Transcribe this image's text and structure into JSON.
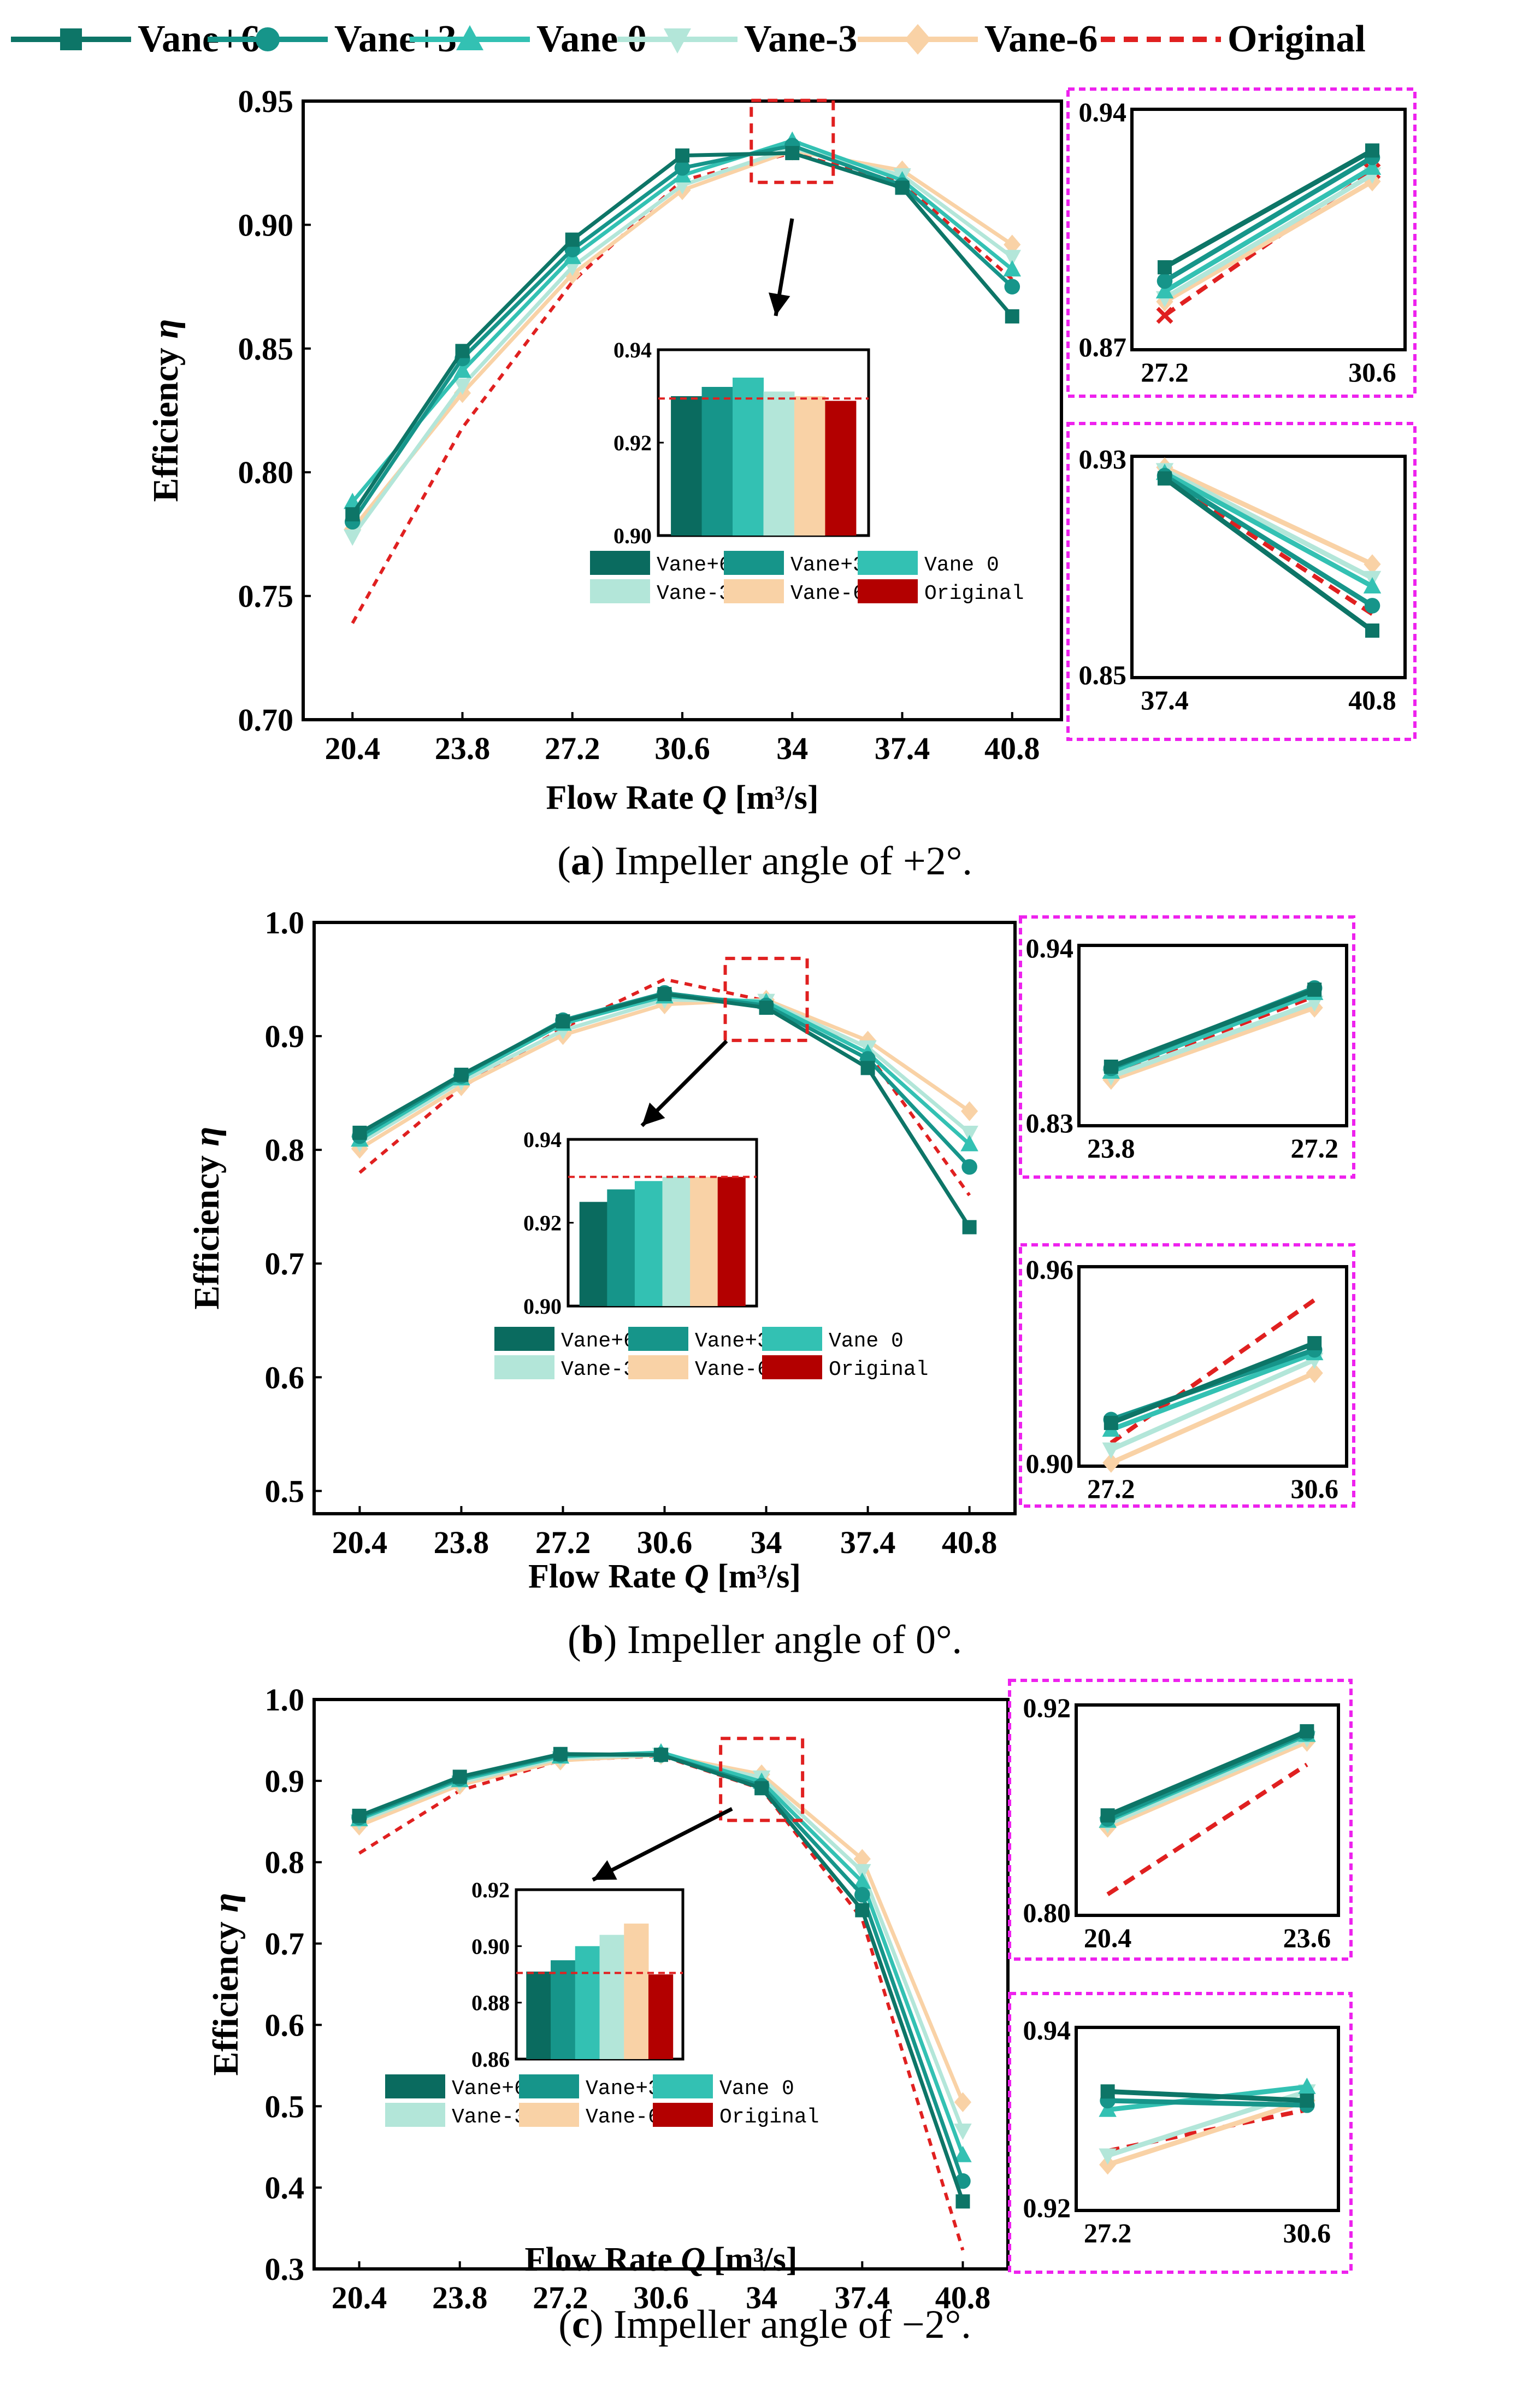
{
  "legend": {
    "entries": [
      {
        "name": "Vane+6",
        "color": "#0d7567",
        "marker": "square",
        "dash": false
      },
      {
        "name": "Vane+3",
        "color": "#16958a",
        "marker": "circle",
        "dash": false
      },
      {
        "name": "Vane 0",
        "color": "#33c1b3",
        "marker": "triangle-up",
        "dash": false
      },
      {
        "name": "Vane-3",
        "color": "#b3e6d9",
        "marker": "triangle-down",
        "dash": false
      },
      {
        "name": "Vane-6",
        "color": "#f9d2a6",
        "marker": "diamond",
        "dash": false
      },
      {
        "name": "Original",
        "color": "#e02020",
        "marker": "none",
        "dash": true
      }
    ]
  },
  "panels": [
    {
      "caption_letter": "a",
      "caption_text": ") Impeller angle of +2°.",
      "caption_open": "(",
      "main": {
        "type": "line",
        "xlabel_prefix": "Flow Rate ",
        "xlabel_var": "Q",
        "xlabel_unit": " [m³/s]",
        "ylabel_prefix": "Efficiency ",
        "ylabel_var": "η",
        "x_ticks": [
          "20.4",
          "23.8",
          "27.2",
          "30.6",
          "34",
          "37.4",
          "40.8"
        ],
        "y_ticks": [
          "0.70",
          "0.75",
          "0.80",
          "0.85",
          "0.90",
          "0.95"
        ],
        "ylim": [
          0.7,
          0.95
        ],
        "series": [
          {
            "name": "Vane+6",
            "values": [
              0.783,
              0.849,
              0.894,
              0.928,
              0.929,
              0.915,
              0.863
            ]
          },
          {
            "name": "Vane+3",
            "values": [
              0.78,
              0.846,
              0.89,
              0.923,
              0.932,
              0.916,
              0.875
            ]
          },
          {
            "name": "Vane 0",
            "values": [
              0.788,
              0.841,
              0.887,
              0.92,
              0.934,
              0.918,
              0.882
            ]
          },
          {
            "name": "Vane-3",
            "values": [
              0.774,
              0.835,
              0.883,
              0.916,
              0.931,
              0.92,
              0.887
            ]
          },
          {
            "name": "Vane-6",
            "values": [
              0.777,
              0.832,
              0.88,
              0.914,
              0.93,
              0.922,
              0.892
            ]
          },
          {
            "name": "Original",
            "values": [
              0.739,
              0.818,
              0.877,
              0.918,
              0.929,
              0.917,
              0.878
            ]
          }
        ]
      },
      "bar_inset": {
        "type": "bar",
        "y_ticks": [
          "0.90",
          "0.92",
          "0.94"
        ],
        "ylim": [
          0.9,
          0.94
        ],
        "values": [
          0.93,
          0.932,
          0.934,
          0.931,
          0.93,
          0.929
        ],
        "reference": 0.9295
      },
      "zooms": [
        {
          "x_ticks": [
            "27.2",
            "30.6"
          ],
          "y_ticks": [
            "0.87",
            "0.94"
          ],
          "ylim": [
            0.87,
            0.94
          ],
          "series": [
            {
              "name": "Vane+6",
              "values": [
                0.894,
                0.928
              ]
            },
            {
              "name": "Vane+3",
              "values": [
                0.89,
                0.926
              ]
            },
            {
              "name": "Vane 0",
              "values": [
                0.887,
                0.923
              ]
            },
            {
              "name": "Vane-3",
              "values": [
                0.885,
                0.921
              ]
            },
            {
              "name": "Vane-6",
              "values": [
                0.884,
                0.919
              ]
            },
            {
              "name": "Original",
              "values": [
                0.88,
                0.922
              ]
            }
          ]
        },
        {
          "x_ticks": [
            "37.4",
            "40.8"
          ],
          "y_ticks": [
            "0.85",
            "0.93"
          ],
          "ylim": [
            0.85,
            0.93
          ],
          "series": [
            {
              "name": "Vane+6",
              "values": [
                0.922,
                0.867
              ]
            },
            {
              "name": "Vane+3",
              "values": [
                0.923,
                0.876
              ]
            },
            {
              "name": "Vane 0",
              "values": [
                0.924,
                0.883
              ]
            },
            {
              "name": "Vane-3",
              "values": [
                0.925,
                0.886
              ]
            },
            {
              "name": "Vane-6",
              "values": [
                0.926,
                0.891
              ]
            },
            {
              "name": "Original",
              "values": [
                0.922,
                0.873
              ]
            }
          ]
        }
      ]
    },
    {
      "caption_letter": "b",
      "caption_text": ") Impeller angle of 0°.",
      "caption_open": "(",
      "main": {
        "type": "line",
        "xlabel_prefix": "Flow Rate ",
        "xlabel_var": "Q",
        "xlabel_unit": " [m³/s]",
        "ylabel_prefix": "Efficiency ",
        "ylabel_var": "η",
        "x_ticks": [
          "20.4",
          "23.8",
          "27.2",
          "30.6",
          "34",
          "37.4",
          "40.8"
        ],
        "y_ticks": [
          "0.5",
          "0.6",
          "0.7",
          "0.8",
          "0.9",
          "1.0"
        ],
        "ylim": [
          0.48,
          1.0
        ],
        "series": [
          {
            "name": "Vane+6",
            "values": [
              0.815,
              0.866,
              0.913,
              0.937,
              0.925,
              0.872,
              0.732
            ]
          },
          {
            "name": "Vane+3",
            "values": [
              0.812,
              0.865,
              0.914,
              0.938,
              0.927,
              0.88,
              0.785
            ]
          },
          {
            "name": "Vane 0",
            "values": [
              0.809,
              0.863,
              0.911,
              0.935,
              0.93,
              0.885,
              0.805
            ]
          },
          {
            "name": "Vane-3",
            "values": [
              0.806,
              0.86,
              0.905,
              0.932,
              0.931,
              0.89,
              0.815
            ]
          },
          {
            "name": "Vane-6",
            "values": [
              0.801,
              0.856,
              0.901,
              0.928,
              0.932,
              0.896,
              0.834
            ]
          },
          {
            "name": "Original",
            "values": [
              0.78,
              0.855,
              0.907,
              0.95,
              0.931,
              0.885,
              0.76
            ]
          }
        ]
      },
      "bar_inset": {
        "type": "bar",
        "y_ticks": [
          "0.90",
          "0.92",
          "0.94"
        ],
        "ylim": [
          0.9,
          0.94
        ],
        "values": [
          0.925,
          0.928,
          0.93,
          0.931,
          0.931,
          0.931
        ],
        "reference": 0.931
      },
      "zooms": [
        {
          "x_ticks": [
            "23.8",
            "27.2"
          ],
          "y_ticks": [
            "0.83",
            "0.94"
          ],
          "ylim": [
            0.83,
            0.94
          ],
          "series": [
            {
              "name": "Vane+6",
              "values": [
                0.866,
                0.913
              ]
            },
            {
              "name": "Vane+3",
              "values": [
                0.865,
                0.914
              ]
            },
            {
              "name": "Vane 0",
              "values": [
                0.863,
                0.911
              ]
            },
            {
              "name": "Vane-3",
              "values": [
                0.86,
                0.905
              ]
            },
            {
              "name": "Vane-6",
              "values": [
                0.858,
                0.902
              ]
            },
            {
              "name": "Original",
              "values": [
                0.862,
                0.909
              ]
            }
          ]
        },
        {
          "x_ticks": [
            "27.2",
            "30.6"
          ],
          "y_ticks": [
            "0.90",
            "0.96"
          ],
          "ylim": [
            0.9,
            0.96
          ],
          "series": [
            {
              "name": "Vane+6",
              "values": [
                0.913,
                0.937
              ]
            },
            {
              "name": "Vane+3",
              "values": [
                0.914,
                0.935
              ]
            },
            {
              "name": "Vane 0",
              "values": [
                0.911,
                0.934
              ]
            },
            {
              "name": "Vane-3",
              "values": [
                0.905,
                0.932
              ]
            },
            {
              "name": "Vane-6",
              "values": [
                0.901,
                0.928
              ]
            },
            {
              "name": "Original",
              "values": [
                0.907,
                0.95
              ]
            }
          ]
        }
      ]
    },
    {
      "caption_letter": "c",
      "caption_text": ") Impeller angle of −2°.",
      "caption_open": "(",
      "main": {
        "type": "line",
        "xlabel_prefix": "Flow Rate ",
        "xlabel_var": "Q",
        "xlabel_unit": " [m³/s]",
        "ylabel_prefix": "Efficiency ",
        "ylabel_var": "η",
        "x_ticks": [
          "20.4",
          "23.8",
          "27.2",
          "30.6",
          "34",
          "37.4",
          "40.8"
        ],
        "y_ticks": [
          "0.3",
          "0.4",
          "0.5",
          "0.6",
          "0.7",
          "0.8",
          "0.9",
          "1.0"
        ],
        "ylim": [
          0.3,
          1.0
        ],
        "series": [
          {
            "name": "Vane+6",
            "values": [
              0.857,
              0.905,
              0.933,
              0.932,
              0.891,
              0.741,
              0.383
            ]
          },
          {
            "name": "Vane+3",
            "values": [
              0.855,
              0.903,
              0.932,
              0.932,
              0.894,
              0.76,
              0.408
            ]
          },
          {
            "name": "Vane 0",
            "values": [
              0.853,
              0.901,
              0.93,
              0.935,
              0.899,
              0.776,
              0.44
            ]
          },
          {
            "name": "Vane-3",
            "values": [
              0.85,
              0.898,
              0.928,
              0.932,
              0.904,
              0.789,
              0.47
            ]
          },
          {
            "name": "Vane-6",
            "values": [
              0.845,
              0.895,
              0.925,
              0.932,
              0.908,
              0.804,
              0.505
            ]
          },
          {
            "name": "Original",
            "values": [
              0.811,
              0.888,
              0.925,
              0.931,
              0.89,
              0.73,
              0.323
            ]
          }
        ]
      },
      "bar_inset": {
        "type": "bar",
        "y_ticks": [
          "0.86",
          "0.88",
          "0.90",
          "0.92"
        ],
        "ylim": [
          0.86,
          0.92
        ],
        "values": [
          0.891,
          0.895,
          0.9,
          0.904,
          0.908,
          0.89
        ],
        "reference": 0.8905
      },
      "zooms": [
        {
          "x_ticks": [
            "20.4",
            "23.6"
          ],
          "y_ticks": [
            "0.80",
            "0.92"
          ],
          "ylim": [
            0.8,
            0.92
          ],
          "series": [
            {
              "name": "Vane+6",
              "values": [
                0.857,
                0.905
              ]
            },
            {
              "name": "Vane+3",
              "values": [
                0.855,
                0.904
              ]
            },
            {
              "name": "Vane 0",
              "values": [
                0.854,
                0.903
              ]
            },
            {
              "name": "Vane-3",
              "values": [
                0.852,
                0.901
              ]
            },
            {
              "name": "Vane-6",
              "values": [
                0.85,
                0.899
              ]
            },
            {
              "name": "Original",
              "values": [
                0.812,
                0.886
              ]
            }
          ]
        },
        {
          "x_ticks": [
            "27.2",
            "30.6"
          ],
          "y_ticks": [
            "0.92",
            "0.94"
          ],
          "ylim": [
            0.92,
            0.94
          ],
          "series": [
            {
              "name": "Vane+6",
              "values": [
                0.933,
                0.932
              ]
            },
            {
              "name": "Vane+3",
              "values": [
                0.932,
                0.9315
              ]
            },
            {
              "name": "Vane 0",
              "values": [
                0.931,
                0.9335
              ]
            },
            {
              "name": "Vane-3",
              "values": [
                0.926,
                0.933
              ]
            },
            {
              "name": "Vane-6",
              "values": [
                0.925,
                0.932
              ]
            },
            {
              "name": "Original",
              "values": [
                0.9265,
                0.931
              ]
            }
          ]
        }
      ]
    }
  ]
}
